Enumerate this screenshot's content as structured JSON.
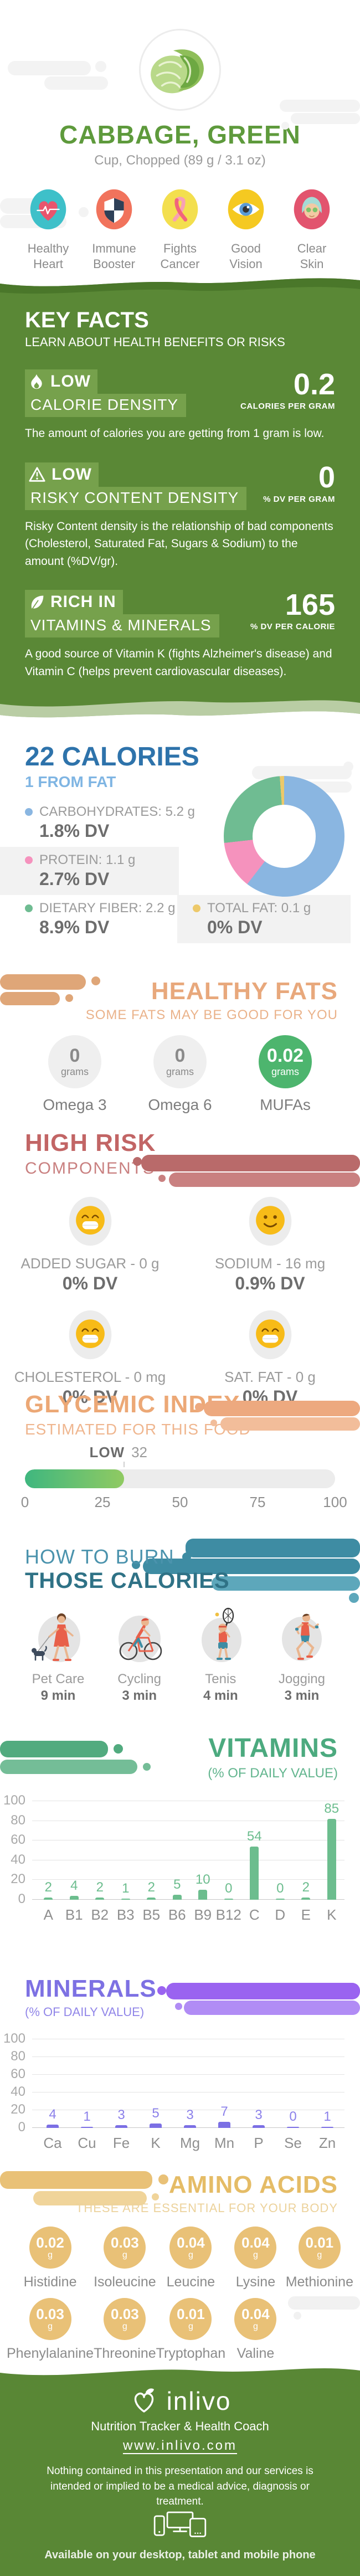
{
  "header": {
    "title": "CABBAGE, GREEN",
    "subtitle": "Cup, Chopped (89 g / 3.1 oz)",
    "benefits": [
      {
        "icon": "heart-ekg",
        "line1": "Healthy",
        "line2": "Heart"
      },
      {
        "icon": "shield",
        "line1": "Immune",
        "line2": "Booster"
      },
      {
        "icon": "awareness-ribbon",
        "line1": "Fights",
        "line2": "Cancer"
      },
      {
        "icon": "eye",
        "line1": "Good",
        "line2": "Vision"
      },
      {
        "icon": "spa-face",
        "line1": "Clear",
        "line2": "Skin"
      }
    ]
  },
  "key_facts": {
    "title": "KEY FACTS",
    "subtitle": "LEARN ABOUT HEALTH BENEFITS OR RISKS",
    "facts": [
      {
        "icon": "flame",
        "badge": "LOW",
        "name": "CALORIE DENSITY",
        "value": "0.2",
        "unit": "CALORIES PER GRAM",
        "description": "The amount of calories you are getting from 1 gram is low."
      },
      {
        "icon": "warning-triangle",
        "badge": "LOW",
        "name": "RISKY CONTENT DENSITY",
        "value": "0",
        "unit": "% DV PER GRAM",
        "description": "Risky Content density is the relationship of bad components (Cholesterol, Saturated Fat, Sugars & Sodium) to the amount (%DV/gr)."
      },
      {
        "icon": "leaf",
        "badge": "RICH IN",
        "name": "VITAMINS & MINERALS",
        "value": "165",
        "unit": "% DV PER CALORIE",
        "description": "A good source of Vitamin K (fights Alzheimer's disease) and Vitamin C (helps prevent cardiovascular diseases)."
      }
    ]
  },
  "calories": {
    "title": "22 CALORIES",
    "subtitle": "1 FROM FAT",
    "legend": [
      {
        "label": "CARBOHYDRATES: 5.2 g",
        "dv": "1.8% DV"
      },
      {
        "label": "PROTEIN: 1.1 g",
        "dv": "2.7% DV"
      },
      {
        "label": "DIETARY FIBER: 2.2 g",
        "dv": "8.9% DV"
      },
      {
        "label": "TOTAL FAT: 0.1 g",
        "dv": "0% DV"
      }
    ]
  },
  "healthy_fats": {
    "title": "HEALTHY FATS",
    "subtitle": "SOME FATS MAY BE GOOD FOR YOU",
    "items": [
      {
        "value": "0",
        "unit": "grams",
        "label": "Omega 3"
      },
      {
        "value": "0",
        "unit": "grams",
        "label": "Omega 6"
      },
      {
        "value": "0.02",
        "unit": "grams",
        "label": "MUFAs"
      }
    ]
  },
  "high_risk": {
    "title": "HIGH RISK",
    "subtitle": "COMPONENTS",
    "items": [
      {
        "emoji": "grin",
        "label": "ADDED SUGAR - 0 g",
        "dv": "0% DV"
      },
      {
        "emoji": "smile",
        "label": "SODIUM - 16 mg",
        "dv": "0.9% DV"
      },
      {
        "emoji": "grin",
        "label": "CHOLESTEROL - 0 mg",
        "dv": "0% DV"
      },
      {
        "emoji": "grin",
        "label": "SAT. FAT - 0 g",
        "dv": "0% DV"
      }
    ]
  },
  "glycemic": {
    "title": "GLYCEMIC INDEX",
    "subtitle": "ESTIMATED FOR THIS FOOD",
    "level": "LOW",
    "value": "32"
  },
  "burn": {
    "title_line1": "HOW TO BURN",
    "title_line2": "THOSE CALORIES",
    "activities": [
      {
        "icon": "dog-walking",
        "label": "Pet Care",
        "time": "9 min"
      },
      {
        "icon": "bicycle",
        "label": "Cycling",
        "time": "3 min"
      },
      {
        "icon": "tennis",
        "label": "Tenis",
        "time": "4 min"
      },
      {
        "icon": "running",
        "label": "Jogging",
        "time": "3 min"
      }
    ]
  },
  "vitamins": {
    "title": "VITAMINS",
    "subtitle": "(% OF DAILY VALUE)"
  },
  "minerals": {
    "title": "MINERALS",
    "subtitle": "(% OF DAILY VALUE)"
  },
  "amino_acids": {
    "title": "AMINO ACIDS",
    "subtitle": "THESE ARE ESSENTIAL FOR YOUR BODY",
    "items": [
      {
        "value": "0.02",
        "unit": "g",
        "label": "Histidine"
      },
      {
        "value": "0.03",
        "unit": "g",
        "label": "Isoleucine"
      },
      {
        "value": "0.04",
        "unit": "g",
        "label": "Leucine"
      },
      {
        "value": "0.04",
        "unit": "g",
        "label": "Lysine"
      },
      {
        "value": "0.01",
        "unit": "g",
        "label": "Methionine"
      },
      {
        "value": "0.03",
        "unit": "g",
        "label": "Phenylalanine"
      },
      {
        "value": "0.03",
        "unit": "g",
        "label": "Threonine"
      },
      {
        "value": "0.01",
        "unit": "g",
        "label": "Tryptophan"
      },
      {
        "value": "0.04",
        "unit": "g",
        "label": "Valine"
      }
    ]
  },
  "footer": {
    "brand": "inlivo",
    "tagline": "Nutrition Tracker & Health Coach",
    "url": "www.inlivo.com",
    "disclaimer": "Nothing contained in this presentation and our services is intended or implied to be a medical advice, diagnosis or treatment.",
    "availability": "Available on your desktop, tablet and mobile phone"
  },
  "colors": {
    "brand_green": "#5a8836",
    "title_green": "#5e9a3c",
    "blue_dark": "#2e73ab",
    "blue_light": "#7fb5e3",
    "salmon": "#e8a87c",
    "maroon": "#c26565",
    "teal": "#3e8ca3",
    "vitamin_green": "#4caa7f",
    "mineral_purple": "#7d71e3",
    "amino_gold": "#e5bc66"
  },
  "chart_data": [
    {
      "type": "pie",
      "subtype": "donut",
      "title": "22 CALORIES",
      "subtitle": "1 FROM FAT",
      "series": [
        {
          "name": "Carbohydrates",
          "grams": 5.2,
          "dv_percent": 1.8,
          "color": "#8ab6e1"
        },
        {
          "name": "Protein",
          "grams": 1.1,
          "dv_percent": 2.7,
          "color": "#f592bd"
        },
        {
          "name": "Dietary Fiber",
          "grams": 2.2,
          "dv_percent": 8.9,
          "color": "#6fbc92"
        },
        {
          "name": "Total Fat",
          "grams": 0.1,
          "dv_percent": 0,
          "color": "#edc96a"
        }
      ]
    },
    {
      "type": "bar",
      "title": "VITAMINS (% OF DAILY VALUE)",
      "categories": [
        "A",
        "B1",
        "B2",
        "B3",
        "B5",
        "B6",
        "B9",
        "B12",
        "C",
        "D",
        "E",
        "K"
      ],
      "values": [
        2,
        4,
        2,
        1,
        2,
        5,
        10,
        0,
        54,
        0,
        2,
        85
      ],
      "ylim": [
        0,
        100
      ],
      "yticks": [
        0,
        20,
        40,
        60,
        80,
        100
      ],
      "bar_color": "#6cbd8e",
      "label_color": "#6cbd8e",
      "grid": true,
      "legend": "none"
    },
    {
      "type": "bar",
      "title": "MINERALS (% OF DAILY VALUE)",
      "categories": [
        "Ca",
        "Cu",
        "Fe",
        "K",
        "Mg",
        "Mn",
        "P",
        "Se",
        "Zn"
      ],
      "values": [
        4,
        1,
        3,
        5,
        3,
        7,
        3,
        0,
        1
      ],
      "ylim": [
        0,
        100
      ],
      "yticks": [
        0,
        20,
        40,
        60,
        80,
        100
      ],
      "bar_color": "#7b6fe4",
      "label_color": "#8b80ea",
      "grid": true,
      "legend": "none"
    },
    {
      "type": "gauge",
      "title": "GLYCEMIC INDEX",
      "label": "LOW",
      "value": 32,
      "range": [
        0,
        100
      ],
      "ticks": [
        "0",
        "25",
        "50",
        "75",
        "100"
      ],
      "fill_colors": [
        "#3fb77f",
        "#90ca62"
      ],
      "track_color": "#ececec"
    }
  ]
}
